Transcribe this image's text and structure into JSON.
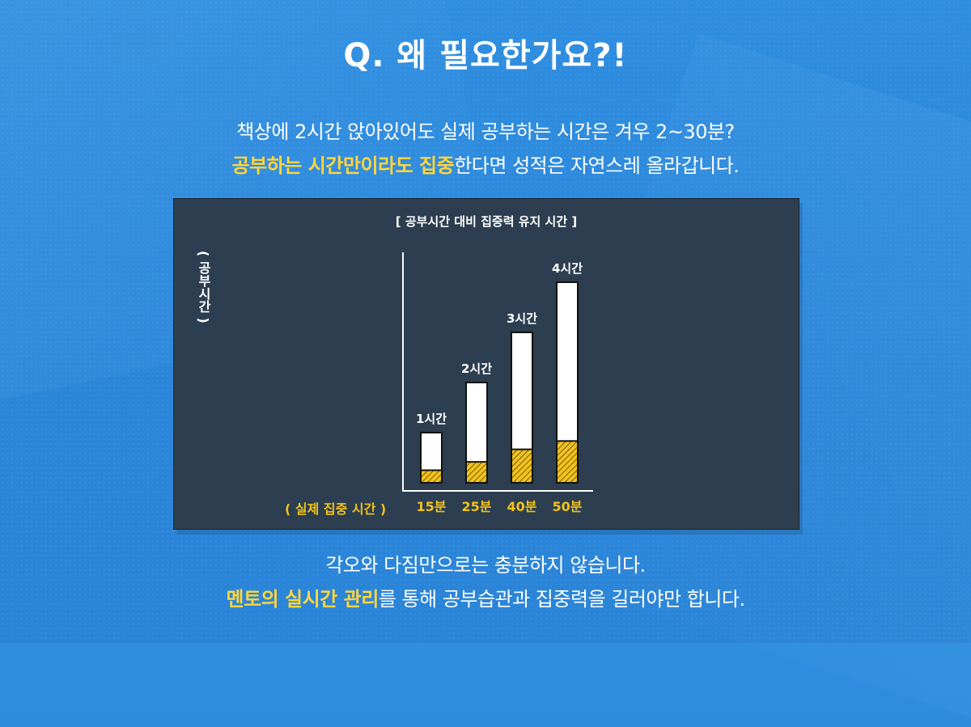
{
  "title": "Q. 왜 필요한가요?!",
  "intro": {
    "line1": "책상에 2시간 앉아있어도 실제 공부하는 시간은 겨우 2~30분?",
    "line2_highlight": "공부하는 시간만이라도 집중",
    "line2_rest": "한다면 성적은 자연스레 올라갑니다."
  },
  "outro": {
    "line1": "각오와 다짐만으로는 충분하지 않습니다.",
    "line2_highlight": "멘토의 실시간 관리",
    "line2_rest": "를 통해 공부습관과 집중력을 길러야만 합니다."
  },
  "colors": {
    "background": "#2c8ad9",
    "panel": "#2c3e4f",
    "highlight": "#ffd53a",
    "focus_fill": "#f3c21b",
    "bar_fill": "#ffffff"
  },
  "chart_data": {
    "type": "bar",
    "title": "[ 공부시간 대비 집중력 유지 시간 ]",
    "ylabel": "( 공부시간 )",
    "xlabel": "( 실제 집중 시간 )",
    "categories": [
      "15분",
      "25분",
      "40분",
      "50분"
    ],
    "series": [
      {
        "values": [
          1,
          2,
          3,
          4
        ],
        "labels": [
          "1시간",
          "2시간",
          "3시간",
          "4시간"
        ]
      },
      {
        "values": [
          0.25,
          0.4167,
          0.6667,
          0.8333
        ]
      }
    ],
    "ylim": [
      0,
      4.5
    ],
    "grid": false
  }
}
